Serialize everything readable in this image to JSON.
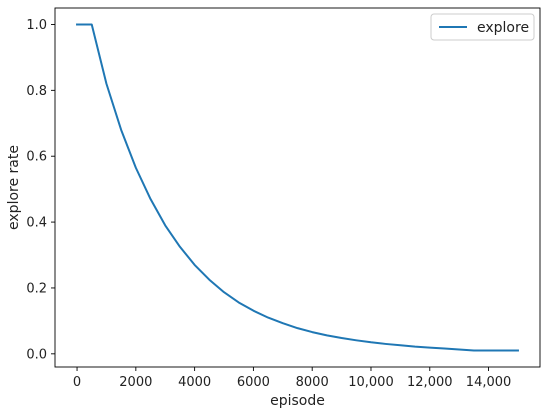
{
  "chart_data": {
    "type": "line",
    "title": "",
    "xlabel": "episode",
    "ylabel": "explore rate",
    "xlim": [
      -750,
      15750
    ],
    "ylim": [
      -0.04,
      1.05
    ],
    "x_ticks": [
      0,
      2000,
      4000,
      6000,
      8000,
      10000,
      12000,
      14000
    ],
    "x_tick_labels": [
      "0",
      "2000",
      "4000",
      "6000",
      "8000",
      "10,000",
      "12,000",
      "14,000"
    ],
    "y_ticks": [
      0.0,
      0.2,
      0.4,
      0.6,
      0.8,
      1.0
    ],
    "y_tick_labels": [
      "0.0",
      "0.2",
      "0.4",
      "0.6",
      "0.8",
      "1.0"
    ],
    "grid": false,
    "legend": {
      "position": "top-right",
      "entries": [
        "explore"
      ]
    },
    "colors": {
      "explore": "#1f77b4"
    },
    "series": [
      {
        "name": "explore",
        "x": [
          0,
          500,
          1000,
          1500,
          2000,
          2500,
          3000,
          3500,
          4000,
          4500,
          5000,
          5500,
          6000,
          6500,
          7000,
          7500,
          8000,
          8500,
          9000,
          9500,
          10000,
          10500,
          11000,
          11500,
          12000,
          12500,
          13000,
          13500,
          14000,
          14500,
          15000
        ],
        "values": [
          1.0,
          1.0,
          0.82,
          0.68,
          0.565,
          0.47,
          0.39,
          0.325,
          0.27,
          0.225,
          0.187,
          0.156,
          0.131,
          0.11,
          0.093,
          0.078,
          0.066,
          0.056,
          0.048,
          0.041,
          0.035,
          0.03,
          0.026,
          0.022,
          0.019,
          0.016,
          0.013,
          0.01,
          0.01,
          0.01,
          0.01
        ]
      }
    ]
  }
}
